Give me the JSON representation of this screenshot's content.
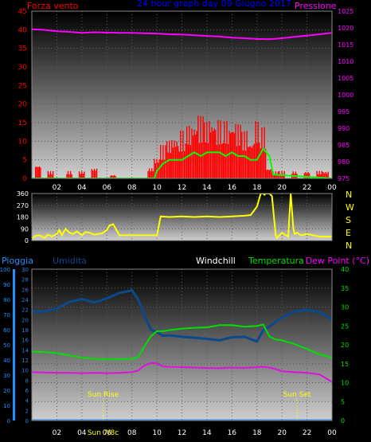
{
  "panel1": {
    "title": "24 hour graph day  09 Giugno 2017",
    "left_label": "Forza vento",
    "right_label": "Pressione",
    "left_ticks": [
      "45",
      "40",
      "35",
      "30",
      "25",
      "20",
      "15",
      "10",
      "5",
      "0"
    ],
    "right_ticks": [
      "1025",
      "1020",
      "1015",
      "1010",
      "1005",
      "1000",
      "995",
      "990",
      "985",
      "980",
      "975"
    ],
    "x_ticks": [
      "02",
      "04",
      "06",
      "08",
      "10",
      "12",
      "14",
      "16",
      "18",
      "20",
      "22",
      "00"
    ]
  },
  "panel2": {
    "left_ticks": [
      "360",
      "270",
      "180",
      "90",
      "0"
    ],
    "compass": [
      "N",
      "W",
      "S",
      "E",
      "N"
    ],
    "x_ticks": []
  },
  "panel3": {
    "labels": {
      "rain": "Pioggia",
      "humidity": "Umidita",
      "windchill": "Windchill",
      "temperature": "Temperatura",
      "dewpoint": "Dew Point (°C)"
    },
    "rain_ticks": [
      "100",
      "90",
      "80",
      "70",
      "60",
      "50",
      "40",
      "30",
      "20",
      "10",
      "0"
    ],
    "humidity_ticks": [
      "30",
      "28",
      "26",
      "24",
      "22",
      "20",
      "18",
      "16",
      "14",
      "12",
      "10",
      "8",
      "6",
      "4",
      "2",
      "0"
    ],
    "temp_ticks": [
      "40",
      "35",
      "30",
      "25",
      "20",
      "15",
      "10",
      "5",
      "0"
    ],
    "x_ticks": [
      "02",
      "04",
      "06",
      "08",
      "10",
      "12",
      "14",
      "16",
      "18",
      "20",
      "22",
      "00"
    ],
    "sunrise_label": "Sun Rise",
    "sunset_label": "Sun Set",
    "sunrise_time_label": "Sun 7/8c"
  },
  "colors": {
    "wind": "#ff0000",
    "gust": "#00ff00",
    "pressure": "#ff00ff",
    "direction": "#ffff00",
    "humidity": "#0a4a8a",
    "temperature": "#00e000",
    "dewpoint": "#e010e0",
    "rain": "#1e90ff",
    "title": "#0000ff",
    "sun": "#ffff00",
    "compass": "#ffff00"
  },
  "chart_data": [
    {
      "type": "line",
      "panel": "wind-pressure",
      "x_unit": "hour",
      "xlim": [
        0,
        24
      ],
      "ylim": [
        0,
        45
      ],
      "y2lim": [
        975,
        1025
      ],
      "series": [
        {
          "name": "Forza vento",
          "axis": "left",
          "style": "bars",
          "x": [
            0.5,
            1,
            1.5,
            2,
            2.5,
            3,
            3.5,
            4,
            4.5,
            5,
            5.5,
            6,
            6.5,
            7,
            7.5,
            8,
            8.5,
            9,
            9.5,
            10,
            10.5,
            11,
            11.5,
            12,
            12.5,
            13,
            13.5,
            14,
            14.5,
            15,
            15.5,
            16,
            16.5,
            17,
            17.5,
            18,
            18.5,
            19,
            19.5,
            20,
            20.5,
            21,
            21.5,
            22,
            22.5,
            23,
            23.5
          ],
          "values": [
            4,
            0,
            2,
            0,
            0,
            2,
            0,
            2,
            0,
            3,
            0,
            0,
            1,
            0,
            0,
            0,
            0,
            0,
            3,
            6,
            9,
            11,
            12,
            13,
            15,
            16,
            17,
            16,
            17,
            16,
            16,
            16,
            15,
            13,
            11,
            16,
            14,
            3,
            2,
            2,
            0,
            2,
            0,
            2,
            0,
            2,
            2
          ]
        },
        {
          "name": "",
          "axis": "left",
          "style": "line",
          "x": [
            0,
            9.8,
            10,
            10.5,
            11,
            11.5,
            12,
            12.5,
            13,
            13.5,
            14,
            14.5,
            15,
            15.5,
            16,
            16.5,
            17,
            17.5,
            18,
            18.5,
            19,
            19.3,
            24
          ],
          "values": [
            0,
            0,
            2,
            4,
            5,
            5,
            5,
            6,
            7,
            6,
            7,
            7,
            7,
            6,
            7,
            6,
            6,
            5,
            5,
            8,
            6,
            1,
            0
          ]
        },
        {
          "name": "Pressione",
          "axis": "right",
          "style": "line",
          "x": [
            0,
            1,
            2,
            3,
            4,
            5,
            6,
            7,
            8,
            9,
            10,
            11,
            12,
            13,
            14,
            15,
            16,
            17,
            18,
            19,
            20,
            21,
            22,
            23,
            24
          ],
          "values": [
            1019.6,
            1019.4,
            1019.0,
            1018.8,
            1018.5,
            1018.7,
            1018.6,
            1018.5,
            1018.5,
            1018.4,
            1018.3,
            1018.1,
            1018.0,
            1017.8,
            1017.6,
            1017.4,
            1017.1,
            1016.9,
            1016.7,
            1016.6,
            1016.9,
            1017.3,
            1017.7,
            1018.1,
            1018.5
          ]
        }
      ]
    },
    {
      "type": "line",
      "panel": "wind-direction",
      "x_unit": "hour",
      "xlim": [
        0,
        24
      ],
      "ylim": [
        0,
        360
      ],
      "series": [
        {
          "name": "",
          "axis": "left",
          "x": [
            0,
            0.3,
            0.6,
            1,
            1.3,
            1.6,
            2,
            2.2,
            2.4,
            2.7,
            3,
            3.3,
            3.6,
            4,
            4.3,
            4.6,
            5,
            5.3,
            5.6,
            6,
            6.2,
            6.5,
            7,
            7.5,
            8,
            8.5,
            9,
            9.5,
            9.8,
            10,
            10.3,
            11,
            12,
            13,
            14,
            15,
            16,
            17,
            17.5,
            18,
            18.3,
            18.5,
            18.6,
            18.7,
            19,
            19.2,
            19.5,
            19.6,
            19.7,
            20,
            20.3,
            20.5,
            20.7,
            20.9,
            21,
            21.2,
            21.5,
            22,
            22.5,
            23,
            23.5,
            24
          ],
          "values": [
            15,
            35,
            40,
            20,
            45,
            30,
            50,
            80,
            40,
            90,
            60,
            50,
            70,
            40,
            65,
            60,
            45,
            50,
            55,
            80,
            115,
            125,
            40,
            40,
            40,
            40,
            40,
            40,
            40,
            40,
            185,
            180,
            185,
            180,
            185,
            180,
            185,
            190,
            195,
            260,
            360,
            360,
            350,
            360,
            360,
            340,
            40,
            20,
            30,
            60,
            40,
            30,
            360,
            100,
            50,
            60,
            40,
            50,
            40,
            30,
            30,
            30
          ]
        }
      ]
    },
    {
      "type": "line",
      "panel": "temperature-humidity",
      "x_unit": "hour",
      "xlim": [
        0,
        24
      ],
      "ylim": [
        0,
        40
      ],
      "y_humidity_lim": [
        0,
        30
      ],
      "y_rain_lim": [
        0,
        100
      ],
      "series": [
        {
          "name": "Umidita",
          "axis": "humidity",
          "x": [
            0,
            1,
            2,
            3,
            4,
            5,
            6,
            7,
            8,
            8.5,
            9,
            9.5,
            10,
            10.5,
            11,
            12,
            13,
            14,
            15,
            16,
            17,
            18,
            18.5,
            19,
            19.5,
            20,
            21,
            22,
            23,
            24
          ],
          "values": [
            21.6,
            21.6,
            22.2,
            23.5,
            24.1,
            23.4,
            24.2,
            25.3,
            25.8,
            24.0,
            21.0,
            18.0,
            17.5,
            16.8,
            16.9,
            16.6,
            16.4,
            16.2,
            15.9,
            16.5,
            16.6,
            15.7,
            17.9,
            18.6,
            19.6,
            20.4,
            21.6,
            21.9,
            21.5,
            20.0
          ]
        },
        {
          "name": "Temperatura",
          "axis": "temperature",
          "x": [
            0,
            1,
            2,
            3,
            4,
            5,
            6,
            7,
            8,
            8.5,
            9,
            9.5,
            10,
            10.5,
            11,
            12,
            13,
            14,
            15,
            16,
            17,
            18,
            18.5,
            19,
            19.5,
            20,
            21,
            22,
            23,
            24
          ],
          "values": [
            18.2,
            18.1,
            17.8,
            17.2,
            16.6,
            16.3,
            16.2,
            16.2,
            16.3,
            16.8,
            19.6,
            22.2,
            23.6,
            23.6,
            23.9,
            24.3,
            24.5,
            24.6,
            25.2,
            25.2,
            24.8,
            25.0,
            25.4,
            22.2,
            21.4,
            21.2,
            20.2,
            18.9,
            17.5,
            16.6
          ]
        },
        {
          "name": "Dew Point (°C)",
          "axis": "temperature",
          "x": [
            0,
            1,
            2,
            3,
            4,
            5,
            6,
            7,
            8,
            8.5,
            9,
            9.5,
            10,
            10.5,
            11,
            12,
            13,
            14,
            15,
            16,
            17,
            18,
            18.5,
            19,
            19.5,
            20,
            21,
            22,
            23,
            24
          ],
          "values": [
            12.8,
            12.7,
            12.6,
            12.6,
            12.5,
            12.6,
            12.5,
            12.6,
            12.8,
            13.2,
            14.5,
            15.2,
            15.1,
            14.3,
            14.2,
            14.1,
            14.0,
            13.9,
            13.8,
            14.0,
            13.9,
            14.1,
            14.2,
            14.0,
            13.6,
            13.0,
            12.8,
            12.6,
            12.2,
            10.2
          ]
        },
        {
          "name": "Pioggia",
          "axis": "rain",
          "x": [
            0,
            24
          ],
          "values": [
            0,
            0
          ]
        }
      ],
      "sunrise_hour": 5.7,
      "sunset_hour": 21.2
    }
  ]
}
